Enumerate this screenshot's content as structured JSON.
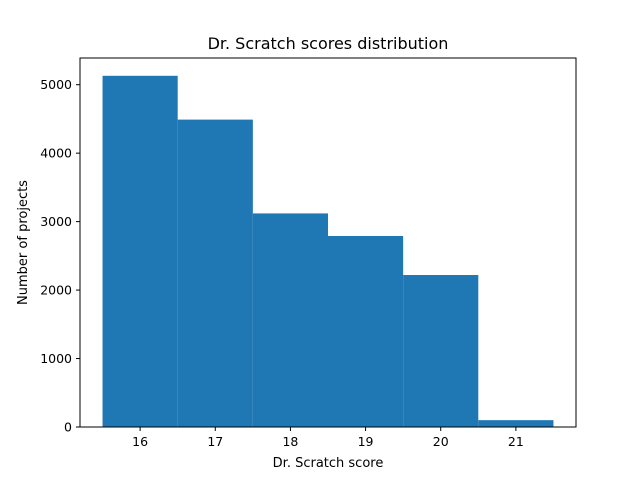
{
  "chart_data": {
    "type": "bar",
    "title": "Dr. Scratch scores distribution",
    "xlabel": "Dr. Scratch score",
    "ylabel": "Number of projects",
    "categories": [
      "16",
      "17",
      "18",
      "19",
      "20",
      "21"
    ],
    "x": [
      16,
      17,
      18,
      19,
      20,
      21
    ],
    "values": [
      5130,
      4490,
      3120,
      2790,
      2220,
      100
    ],
    "bin_width": 1,
    "xlim": [
      15.2,
      21.8
    ],
    "ylim": [
      0,
      5390
    ],
    "xticks": [
      16,
      17,
      18,
      19,
      20,
      21
    ],
    "yticks": [
      0,
      1000,
      2000,
      3000,
      4000,
      5000
    ],
    "grid": false,
    "legend": "none",
    "bar_color": "#1f77b4"
  }
}
